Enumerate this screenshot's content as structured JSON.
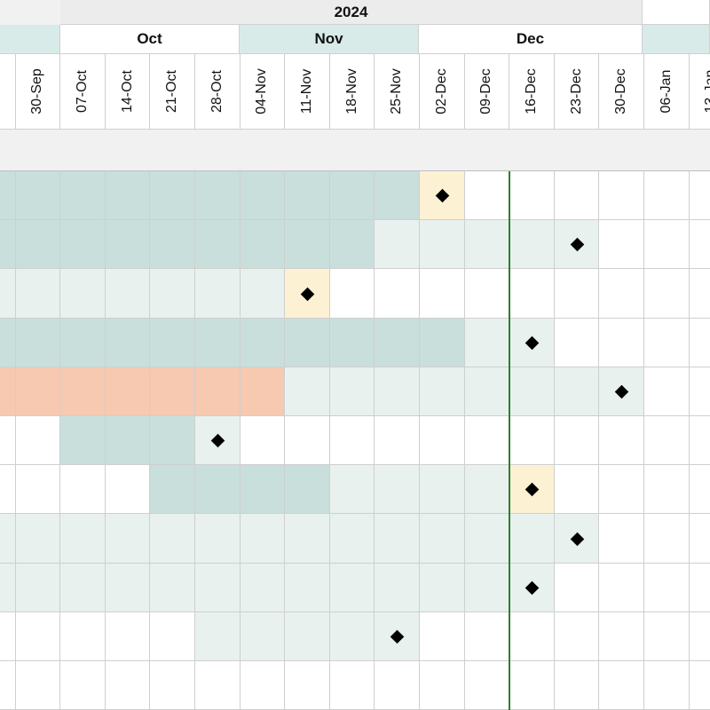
{
  "colors": {
    "header_bg": "#f1f1f1",
    "month_teal": "#d9ebe8",
    "bar_teal": "#c8dfdc",
    "bar_light": "#e8f1ee",
    "bar_salmon": "#f6c9b0",
    "milestone_cream": "#fdf1d4",
    "today_line": "#2e7d32",
    "grid": "#cfcfcf"
  },
  "timeline": {
    "year": "2024",
    "months": [
      {
        "label": "",
        "style": "teal"
      },
      {
        "label": "Oct",
        "style": "white"
      },
      {
        "label": "Nov",
        "style": "teal"
      },
      {
        "label": "Dec",
        "style": "white"
      },
      {
        "label": "",
        "style": "teal"
      }
    ],
    "weeks": [
      "",
      "30-Sep",
      "07-Oct",
      "14-Oct",
      "21-Oct",
      "28-Oct",
      "04-Nov",
      "11-Nov",
      "18-Nov",
      "25-Nov",
      "02-Dec",
      "09-Dec",
      "16-Dec",
      "23-Dec",
      "30-Dec",
      "06-Jan",
      "13-Jan"
    ],
    "today_week_index": 11
  },
  "tasks": [
    {
      "segments": [
        {
          "from": 0,
          "to": 9,
          "color": "bar_teal"
        },
        {
          "from": 10,
          "to": 10,
          "color": "milestone_cream"
        }
      ],
      "milestone": 10
    },
    {
      "segments": [
        {
          "from": 0,
          "to": 8,
          "color": "bar_teal"
        },
        {
          "from": 9,
          "to": 13,
          "color": "bar_light"
        }
      ],
      "milestone": 13
    },
    {
      "segments": [
        {
          "from": 0,
          "to": 6,
          "color": "bar_light"
        },
        {
          "from": 7,
          "to": 7,
          "color": "milestone_cream"
        }
      ],
      "milestone": 7
    },
    {
      "segments": [
        {
          "from": 0,
          "to": 10,
          "color": "bar_teal"
        },
        {
          "from": 11,
          "to": 12,
          "color": "bar_light"
        }
      ],
      "milestone": 12
    },
    {
      "segments": [
        {
          "from": 0,
          "to": 6,
          "color": "bar_salmon"
        },
        {
          "from": 7,
          "to": 14,
          "color": "bar_light"
        }
      ],
      "milestone": 14
    },
    {
      "segments": [
        {
          "from": 2,
          "to": 4,
          "color": "bar_teal"
        },
        {
          "from": 5,
          "to": 5,
          "color": "bar_light"
        }
      ],
      "milestone": 5
    },
    {
      "segments": [
        {
          "from": 4,
          "to": 7,
          "color": "bar_teal"
        },
        {
          "from": 8,
          "to": 11,
          "color": "bar_light"
        },
        {
          "from": 12,
          "to": 12,
          "color": "milestone_cream"
        }
      ],
      "milestone": 12
    },
    {
      "segments": [
        {
          "from": 0,
          "to": 13,
          "color": "bar_light"
        }
      ],
      "milestone": 13
    },
    {
      "segments": [
        {
          "from": 0,
          "to": 12,
          "color": "bar_light"
        }
      ],
      "milestone": 12
    },
    {
      "segments": [
        {
          "from": 5,
          "to": 9,
          "color": "bar_light"
        }
      ],
      "milestone": 9
    },
    {
      "segments": [],
      "milestone": null
    }
  ]
}
